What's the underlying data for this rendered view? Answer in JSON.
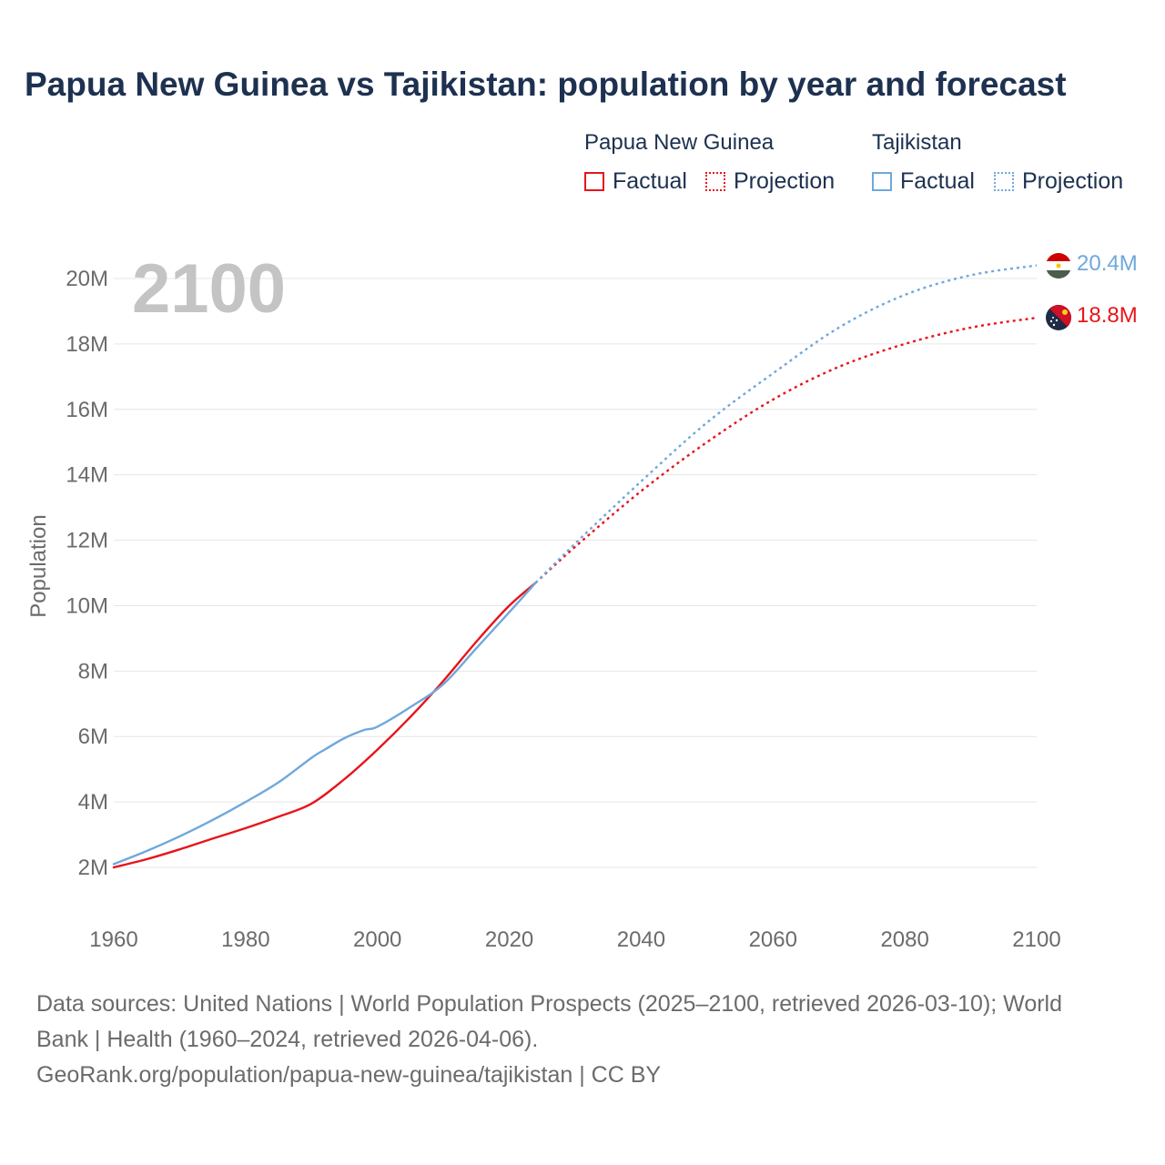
{
  "title": "Papua New Guinea vs Tajikistan: population by year and forecast",
  "legend": {
    "groups": [
      {
        "name": "Papua New Guinea",
        "factual": "Factual",
        "projection": "Projection",
        "color": "#e8141b"
      },
      {
        "name": "Tajikistan",
        "factual": "Factual",
        "projection": "Projection",
        "color": "#6fa8dc"
      }
    ]
  },
  "year_label": "2100",
  "end_labels": {
    "tajikistan": "20.4M",
    "papua_new_guinea": "18.8M"
  },
  "footer": {
    "sources": "Data sources: United Nations | World Population Prospects (2025–2100, retrieved 2026-03-10); World Bank | Health (1960–2024, retrieved 2026-04-06).",
    "credit": "GeoRank.org/population/papua-new-guinea/tajikistan | CC BY"
  },
  "chart_data": {
    "type": "line",
    "ylabel": "Population",
    "xlabel": "",
    "xlim": [
      1960,
      2100
    ],
    "ylim": [
      2,
      20
    ],
    "unit": "millions",
    "x_ticks": [
      1960,
      1980,
      2000,
      2020,
      2040,
      2060,
      2080,
      2100
    ],
    "y_ticks": [
      2,
      4,
      6,
      8,
      10,
      12,
      14,
      16,
      18,
      20
    ],
    "y_tick_labels": [
      "2M",
      "4M",
      "6M",
      "8M",
      "10M",
      "12M",
      "14M",
      "16M",
      "18M",
      "20M"
    ],
    "series": [
      {
        "name": "Papua New Guinea",
        "kind": "factual",
        "color": "#e8141b",
        "x": [
          1960,
          1965,
          1970,
          1975,
          1980,
          1985,
          1990,
          1995,
          2000,
          2005,
          2010,
          2015,
          2020,
          2024
        ],
        "values": [
          2.0,
          2.25,
          2.55,
          2.88,
          3.2,
          3.55,
          3.95,
          4.7,
          5.6,
          6.6,
          7.7,
          8.9,
          10.0,
          10.7
        ]
      },
      {
        "name": "Papua New Guinea",
        "kind": "projection",
        "color": "#e8141b",
        "x": [
          2024,
          2030,
          2040,
          2050,
          2060,
          2070,
          2080,
          2090,
          2100
        ],
        "values": [
          10.7,
          11.8,
          13.5,
          15.0,
          16.3,
          17.3,
          18.0,
          18.5,
          18.8
        ]
      },
      {
        "name": "Tajikistan",
        "kind": "factual",
        "color": "#6fa8dc",
        "x": [
          1960,
          1965,
          1970,
          1975,
          1980,
          1985,
          1990,
          1992,
          1995,
          1998,
          2000,
          2005,
          2010,
          2015,
          2020,
          2024
        ],
        "values": [
          2.1,
          2.5,
          2.95,
          3.45,
          4.0,
          4.6,
          5.35,
          5.6,
          5.95,
          6.2,
          6.3,
          6.9,
          7.6,
          8.7,
          9.8,
          10.7
        ]
      },
      {
        "name": "Tajikistan",
        "kind": "projection",
        "color": "#6fa8dc",
        "x": [
          2024,
          2030,
          2040,
          2050,
          2060,
          2070,
          2080,
          2090,
          2100
        ],
        "values": [
          10.7,
          11.9,
          13.8,
          15.6,
          17.1,
          18.5,
          19.5,
          20.1,
          20.4
        ]
      }
    ]
  }
}
